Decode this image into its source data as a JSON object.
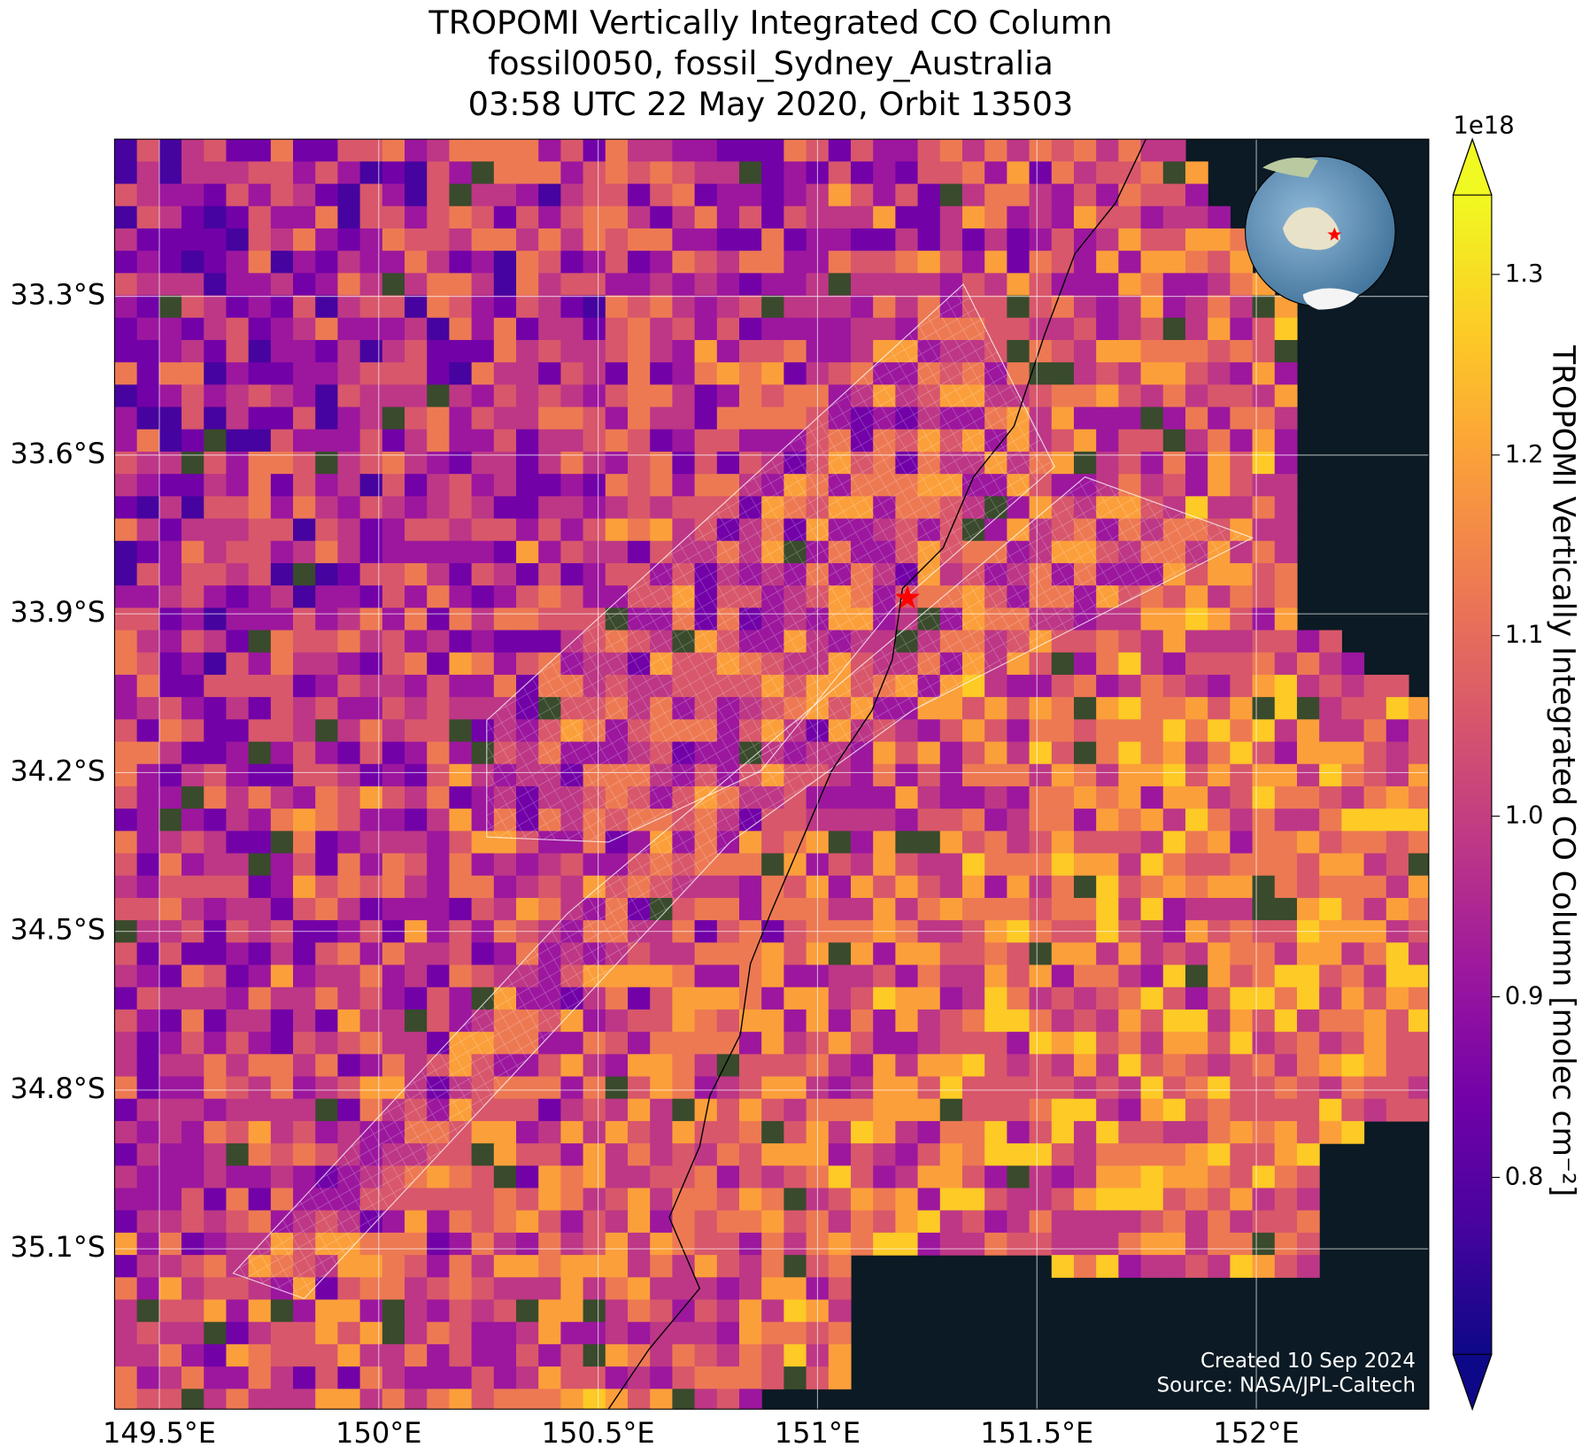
{
  "chart_data": {
    "type": "map",
    "title": [
      "TROPOMI Vertically Integrated CO Column",
      "fossil0050, fossil_Sydney_Australia",
      "03:58 UTC 22 May 2020, Orbit 13503"
    ],
    "xlim": [
      149.398,
      152.393
    ],
    "ylim": [
      -35.403,
      -33.003
    ],
    "xticks": [
      {
        "value": 149.5,
        "label": "149.5°E"
      },
      {
        "value": 150,
        "label": "150°E"
      },
      {
        "value": 150.5,
        "label": "150.5°E"
      },
      {
        "value": 151,
        "label": "151°E"
      },
      {
        "value": 151.5,
        "label": "151.5°E"
      },
      {
        "value": 152,
        "label": "152°E"
      }
    ],
    "yticks": [
      {
        "value": -33.3,
        "label": "33.3°S"
      },
      {
        "value": -33.6,
        "label": "33.6°S"
      },
      {
        "value": -33.9,
        "label": "33.9°S"
      },
      {
        "value": -34.2,
        "label": "34.2°S"
      },
      {
        "value": -34.5,
        "label": "34.5°S"
      },
      {
        "value": -34.8,
        "label": "34.8°S"
      },
      {
        "value": -35.1,
        "label": "35.1°S"
      }
    ],
    "grid": true,
    "colorbar": {
      "label": "TROPOMI Vertically Integrated CO Column [molec cm⁻²]",
      "offset_text": "1e18",
      "colormap": "plasma",
      "lim": [
        0.702,
        1.344
      ],
      "ticks": [
        0.8,
        0.9,
        1.0,
        1.1,
        1.2,
        1.3
      ],
      "tick_labels": [
        "0.8",
        "0.9",
        "1.0",
        "1.1",
        "1.2",
        "1.3"
      ]
    },
    "site": {
      "lon": 151.205,
      "lat": -33.87,
      "color": "#ff0000"
    },
    "credits": [
      "Created 10 Sep 2024",
      "Source: NASA/JPL-Caltech"
    ]
  }
}
